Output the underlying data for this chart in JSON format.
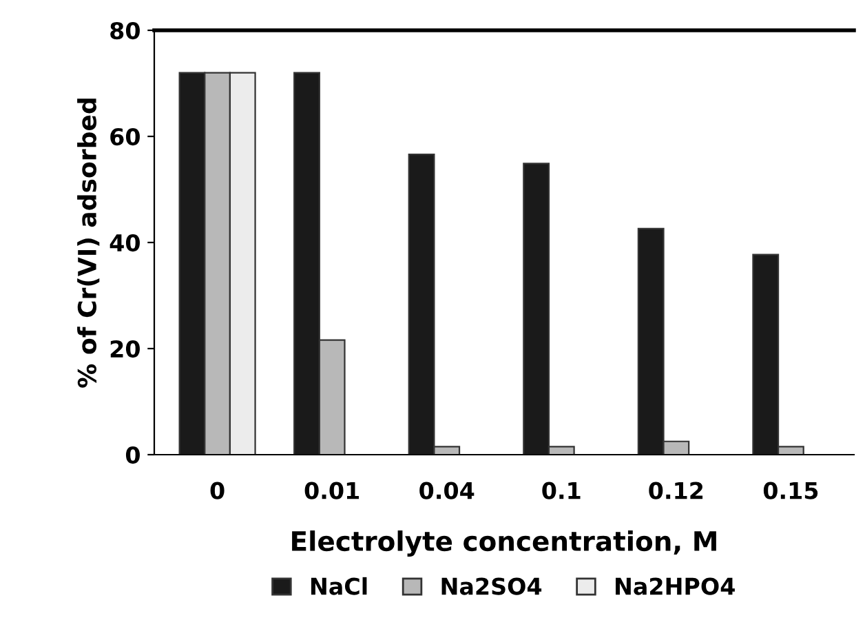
{
  "chart_data": {
    "type": "bar",
    "xlabel": "Electrolyte concentration, M",
    "ylabel": "% of Cr(VI) adsorbed",
    "categories": [
      "0",
      "0.01",
      "0.04",
      "0.1",
      "0.12",
      "0.15"
    ],
    "series": [
      {
        "name": "NaCl",
        "color": "#1a1a1a",
        "values": [
          72,
          72,
          56.6,
          54.9,
          42.6,
          37.7
        ]
      },
      {
        "name": "Na2SO4",
        "color": "#b8b8b8",
        "values": [
          72,
          21.6,
          1.5,
          1.5,
          2.5,
          1.5
        ]
      },
      {
        "name": "Na2HPO4",
        "color": "#ececec",
        "values": [
          72,
          null,
          null,
          null,
          null,
          null
        ]
      }
    ],
    "ylim": [
      0,
      80
    ],
    "yticks": [
      0,
      20,
      40,
      60,
      80
    ],
    "grid": false,
    "legend": "bottom"
  }
}
